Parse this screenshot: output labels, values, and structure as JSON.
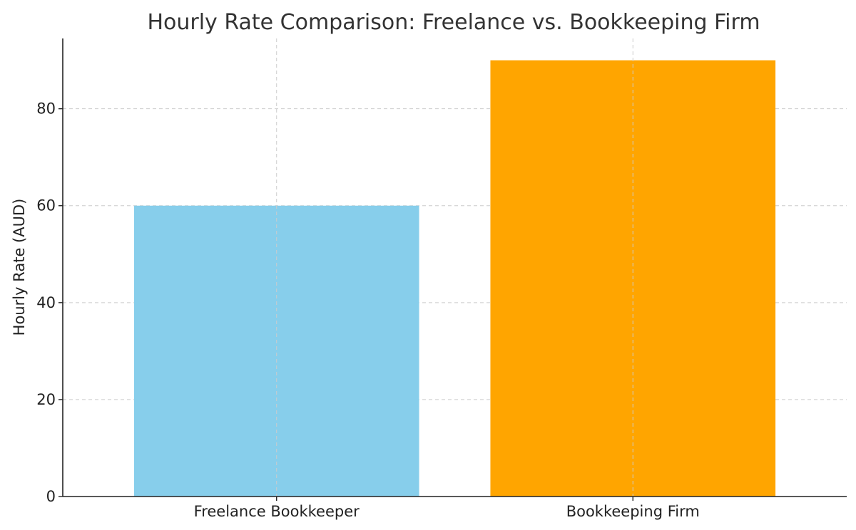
{
  "chart_data": {
    "type": "bar",
    "title": "Hourly Rate Comparison: Freelance vs. Bookkeeping Firm",
    "xlabel": "",
    "ylabel": "Hourly Rate (AUD)",
    "categories": [
      "Freelance Bookkeeper",
      "Bookkeeping Firm"
    ],
    "values": [
      60,
      90
    ],
    "colors": [
      "#87CEEB",
      "#FFA500"
    ],
    "ylim": [
      0,
      94.5
    ],
    "yticks": [
      0,
      20,
      40,
      60,
      80
    ],
    "grid": true,
    "legend": "none"
  }
}
